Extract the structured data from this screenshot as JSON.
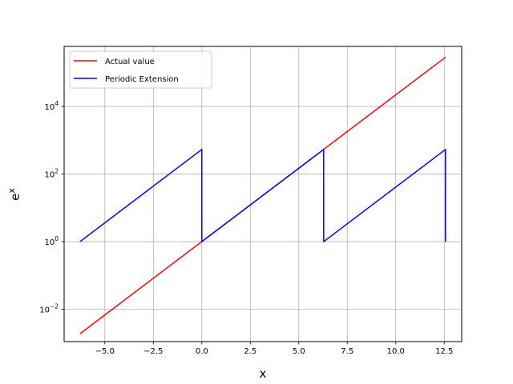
{
  "chart_data": {
    "type": "line",
    "xlabel": "x",
    "ylabel": "e^x",
    "yscale": "log",
    "xlim": [
      -7.1,
      13.4
    ],
    "ylim": [
      0.0011,
      600000
    ],
    "grid": true,
    "legend_position": "top-left",
    "x_ticks": [
      -5.0,
      -2.5,
      0.0,
      2.5,
      5.0,
      7.5,
      10.0,
      12.5
    ],
    "x_tick_labels": [
      "−5.0",
      "−2.5",
      "0.0",
      "2.5",
      "5.0",
      "7.5",
      "10.0",
      "12.5"
    ],
    "y_ticks": [
      0.01,
      1,
      100,
      10000
    ],
    "y_tick_labels": [
      {
        "base": "10",
        "exp": "−2"
      },
      {
        "base": "10",
        "exp": "0"
      },
      {
        "base": "10",
        "exp": "2"
      },
      {
        "base": "10",
        "exp": "4"
      }
    ],
    "series": [
      {
        "name": "Actual value",
        "color": "#ff0000",
        "x": [
          -6.283,
          12.566
        ],
        "y": [
          0.00187,
          286751
        ]
      },
      {
        "name": "Periodic Extension",
        "color": "#0000ff",
        "x": [
          -6.283,
          0.0,
          0.0,
          6.283,
          6.283,
          12.566,
          12.566
        ],
        "y": [
          1,
          535.5,
          1,
          535.5,
          1,
          535.5,
          1
        ]
      }
    ]
  }
}
